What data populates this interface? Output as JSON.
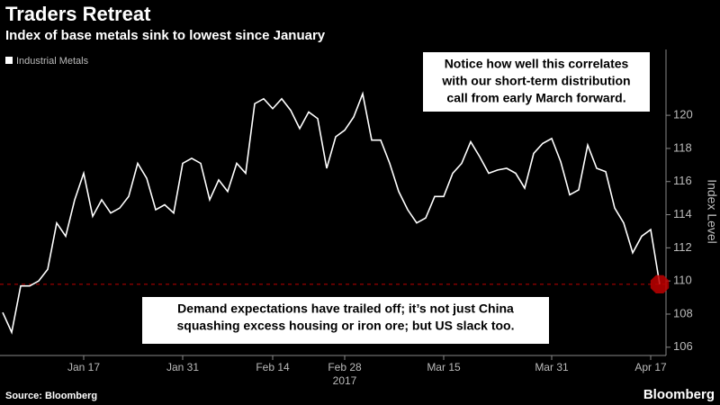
{
  "chart_data": {
    "type": "line",
    "title": "Traders Retreat",
    "subtitle": "Index of base metals sink to lowest since January",
    "ylabel": "Index Level",
    "x_sublabel": "2017",
    "source": "Source: Bloomberg",
    "brand": "Bloomberg",
    "categories": [
      null,
      null,
      null,
      null,
      null,
      null,
      null,
      null,
      null,
      "Jan 17",
      null,
      null,
      null,
      null,
      null,
      null,
      null,
      null,
      null,
      null,
      "Jan 31",
      null,
      null,
      null,
      null,
      null,
      null,
      null,
      null,
      null,
      "Feb 14",
      null,
      null,
      null,
      null,
      null,
      null,
      null,
      "Feb 28",
      null,
      null,
      null,
      null,
      null,
      null,
      null,
      null,
      null,
      null,
      "Mar 15",
      null,
      null,
      null,
      null,
      null,
      null,
      null,
      null,
      null,
      null,
      null,
      "Mar 31",
      null,
      null,
      null,
      null,
      null,
      null,
      null,
      null,
      null,
      null,
      "Apr 17",
      null
    ],
    "series": [
      {
        "name": "Industrial Metals",
        "color": "#ffffff",
        "values": [
          108.1,
          106.9,
          109.7,
          109.7,
          110.0,
          110.7,
          113.5,
          112.7,
          114.9,
          116.5,
          113.9,
          114.9,
          114.1,
          114.4,
          115.1,
          117.1,
          116.2,
          114.3,
          114.6,
          114.1,
          117.1,
          117.4,
          117.1,
          114.9,
          116.1,
          115.4,
          117.1,
          116.5,
          120.7,
          121.0,
          120.4,
          121.0,
          120.3,
          119.2,
          120.2,
          119.8,
          116.8,
          118.7,
          119.1,
          119.9,
          121.3,
          118.5,
          118.5,
          117.1,
          115.4,
          114.3,
          113.5,
          113.8,
          115.1,
          115.1,
          116.5,
          117.1,
          118.4,
          117.5,
          116.5,
          116.7,
          116.8,
          116.5,
          115.6,
          117.7,
          118.3,
          118.6,
          117.2,
          115.2,
          115.5,
          118.2,
          116.8,
          116.6,
          114.4,
          113.5,
          111.7,
          112.7,
          113.1,
          109.8
        ]
      }
    ],
    "ylim": [
      105.5,
      123.7
    ],
    "yticks": [
      106,
      108,
      110,
      112,
      114,
      116,
      118,
      120
    ],
    "grid": false,
    "annotations": [
      {
        "lines": [
          "Notice how well this correlates",
          "with our short-term distribution",
          "call from early March forward."
        ]
      },
      {
        "lines": [
          "Demand expectations have trailed off; it’s not just China",
          "squashing excess housing or iron ore; but US slack too."
        ]
      }
    ],
    "marker_color": "#c00000"
  }
}
